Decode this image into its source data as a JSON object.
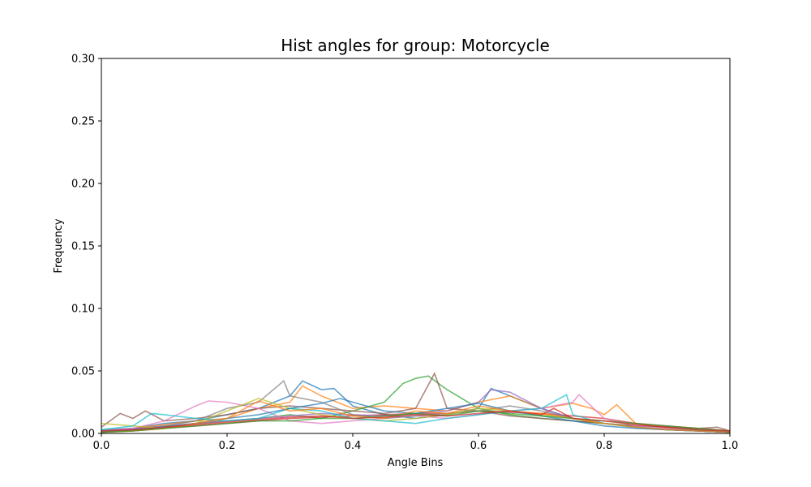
{
  "chart_data": {
    "type": "line",
    "title": "Hist angles for group: Motorcycle",
    "xlabel": "Angle Bins",
    "ylabel": "Frequency",
    "xlim": [
      0.0,
      1.0
    ],
    "ylim": [
      0.0,
      0.3
    ],
    "xticks": [
      "0.0",
      "0.2",
      "0.4",
      "0.6",
      "0.8",
      "1.0"
    ],
    "yticks": [
      "0.00",
      "0.05",
      "0.10",
      "0.15",
      "0.20",
      "0.25",
      "0.30"
    ],
    "grid": false,
    "legend": "none",
    "series": [
      {
        "color": "#1f77b4",
        "x": [
          0.0,
          0.05,
          0.1,
          0.15,
          0.2,
          0.25,
          0.3,
          0.32,
          0.35,
          0.37,
          0.4,
          0.45,
          0.5,
          0.55,
          0.6,
          0.62,
          0.65,
          0.7,
          0.75,
          0.8,
          0.85,
          0.9,
          0.95,
          1.0
        ],
        "y": [
          0.003,
          0.004,
          0.008,
          0.01,
          0.015,
          0.02,
          0.03,
          0.042,
          0.035,
          0.036,
          0.022,
          0.015,
          0.012,
          0.015,
          0.02,
          0.036,
          0.03,
          0.02,
          0.012,
          0.008,
          0.005,
          0.003,
          0.002,
          0.001
        ]
      },
      {
        "color": "#ff7f0e",
        "x": [
          0.0,
          0.05,
          0.1,
          0.15,
          0.2,
          0.25,
          0.3,
          0.32,
          0.35,
          0.4,
          0.45,
          0.5,
          0.55,
          0.6,
          0.65,
          0.7,
          0.75,
          0.78,
          0.8,
          0.82,
          0.85,
          0.9,
          0.95,
          1.0
        ],
        "y": [
          0.002,
          0.004,
          0.007,
          0.01,
          0.012,
          0.02,
          0.025,
          0.038,
          0.03,
          0.02,
          0.022,
          0.02,
          0.018,
          0.025,
          0.03,
          0.02,
          0.024,
          0.02,
          0.015,
          0.023,
          0.008,
          0.004,
          0.002,
          0.001
        ]
      },
      {
        "color": "#2ca02c",
        "x": [
          0.0,
          0.05,
          0.1,
          0.15,
          0.2,
          0.25,
          0.3,
          0.35,
          0.4,
          0.45,
          0.48,
          0.5,
          0.52,
          0.55,
          0.6,
          0.65,
          0.7,
          0.75,
          0.8,
          0.85,
          0.9,
          0.95,
          1.0
        ],
        "y": [
          0.001,
          0.003,
          0.005,
          0.008,
          0.01,
          0.012,
          0.015,
          0.012,
          0.018,
          0.025,
          0.04,
          0.044,
          0.046,
          0.035,
          0.02,
          0.015,
          0.012,
          0.01,
          0.008,
          0.006,
          0.005,
          0.003,
          0.001
        ]
      },
      {
        "color": "#d62728",
        "x": [
          0.0,
          0.05,
          0.1,
          0.15,
          0.2,
          0.25,
          0.3,
          0.35,
          0.4,
          0.45,
          0.5,
          0.55,
          0.6,
          0.65,
          0.7,
          0.75,
          0.8,
          0.85,
          0.9,
          0.95,
          1.0
        ],
        "y": [
          0.001,
          0.002,
          0.004,
          0.006,
          0.008,
          0.01,
          0.012,
          0.013,
          0.014,
          0.015,
          0.016,
          0.016,
          0.018,
          0.017,
          0.016,
          0.014,
          0.012,
          0.008,
          0.006,
          0.004,
          0.002
        ]
      },
      {
        "color": "#9467bd",
        "x": [
          0.0,
          0.05,
          0.1,
          0.15,
          0.2,
          0.25,
          0.3,
          0.35,
          0.4,
          0.45,
          0.5,
          0.55,
          0.6,
          0.62,
          0.65,
          0.7,
          0.75,
          0.8,
          0.85,
          0.9,
          0.95,
          1.0
        ],
        "y": [
          0.002,
          0.004,
          0.006,
          0.008,
          0.01,
          0.012,
          0.014,
          0.016,
          0.015,
          0.014,
          0.016,
          0.018,
          0.025,
          0.035,
          0.033,
          0.02,
          0.012,
          0.008,
          0.005,
          0.003,
          0.002,
          0.001
        ]
      },
      {
        "color": "#8c564b",
        "x": [
          0.0,
          0.03,
          0.05,
          0.07,
          0.1,
          0.15,
          0.2,
          0.25,
          0.3,
          0.35,
          0.4,
          0.45,
          0.5,
          0.53,
          0.55,
          0.6,
          0.65,
          0.7,
          0.75,
          0.8,
          0.85,
          0.9,
          0.95,
          0.98,
          1.0
        ],
        "y": [
          0.005,
          0.016,
          0.012,
          0.018,
          0.01,
          0.012,
          0.015,
          0.02,
          0.022,
          0.02,
          0.018,
          0.016,
          0.02,
          0.048,
          0.02,
          0.018,
          0.014,
          0.012,
          0.01,
          0.008,
          0.006,
          0.005,
          0.004,
          0.005,
          0.002
        ]
      },
      {
        "color": "#e377c2",
        "x": [
          0.0,
          0.05,
          0.1,
          0.15,
          0.17,
          0.2,
          0.25,
          0.3,
          0.35,
          0.4,
          0.45,
          0.5,
          0.55,
          0.6,
          0.65,
          0.7,
          0.75,
          0.76,
          0.8,
          0.85,
          0.9,
          0.95,
          1.0
        ],
        "y": [
          0.002,
          0.004,
          0.01,
          0.022,
          0.026,
          0.025,
          0.02,
          0.01,
          0.008,
          0.01,
          0.012,
          0.014,
          0.012,
          0.015,
          0.018,
          0.02,
          0.025,
          0.031,
          0.012,
          0.006,
          0.004,
          0.002,
          0.001
        ]
      },
      {
        "color": "#7f7f7f",
        "x": [
          0.0,
          0.05,
          0.1,
          0.15,
          0.2,
          0.25,
          0.29,
          0.3,
          0.35,
          0.4,
          0.45,
          0.5,
          0.55,
          0.6,
          0.65,
          0.7,
          0.75,
          0.8,
          0.85,
          0.9,
          0.95,
          1.0
        ],
        "y": [
          0.002,
          0.003,
          0.006,
          0.01,
          0.02,
          0.025,
          0.042,
          0.03,
          0.025,
          0.015,
          0.012,
          0.014,
          0.016,
          0.018,
          0.022,
          0.018,
          0.012,
          0.008,
          0.005,
          0.003,
          0.002,
          0.001
        ]
      },
      {
        "color": "#bcbd22",
        "x": [
          0.0,
          0.05,
          0.1,
          0.15,
          0.2,
          0.25,
          0.3,
          0.35,
          0.4,
          0.45,
          0.5,
          0.55,
          0.6,
          0.65,
          0.7,
          0.75,
          0.8,
          0.85,
          0.9,
          0.95,
          1.0
        ],
        "y": [
          0.008,
          0.006,
          0.004,
          0.008,
          0.018,
          0.028,
          0.02,
          0.015,
          0.012,
          0.01,
          0.012,
          0.015,
          0.02,
          0.018,
          0.015,
          0.012,
          0.008,
          0.005,
          0.003,
          0.002,
          0.001
        ]
      },
      {
        "color": "#17becf",
        "x": [
          0.0,
          0.05,
          0.08,
          0.1,
          0.15,
          0.2,
          0.25,
          0.3,
          0.35,
          0.4,
          0.45,
          0.5,
          0.55,
          0.6,
          0.65,
          0.7,
          0.74,
          0.75,
          0.8,
          0.85,
          0.9,
          0.95,
          1.0
        ],
        "y": [
          0.003,
          0.006,
          0.016,
          0.015,
          0.012,
          0.01,
          0.012,
          0.02,
          0.018,
          0.012,
          0.01,
          0.008,
          0.012,
          0.015,
          0.018,
          0.02,
          0.031,
          0.015,
          0.008,
          0.005,
          0.003,
          0.002,
          0.001
        ]
      },
      {
        "color": "#1f77b4",
        "x": [
          0.0,
          0.05,
          0.1,
          0.15,
          0.2,
          0.25,
          0.3,
          0.35,
          0.38,
          0.4,
          0.45,
          0.5,
          0.55,
          0.6,
          0.65,
          0.7,
          0.75,
          0.8,
          0.85,
          0.9,
          0.95,
          1.0
        ],
        "y": [
          0.001,
          0.003,
          0.005,
          0.008,
          0.012,
          0.015,
          0.02,
          0.024,
          0.028,
          0.025,
          0.018,
          0.016,
          0.02,
          0.024,
          0.018,
          0.014,
          0.01,
          0.006,
          0.004,
          0.003,
          0.002,
          0.001
        ]
      },
      {
        "color": "#ff7f0e",
        "x": [
          0.0,
          0.05,
          0.1,
          0.15,
          0.2,
          0.25,
          0.3,
          0.35,
          0.4,
          0.45,
          0.5,
          0.55,
          0.6,
          0.65,
          0.7,
          0.75,
          0.8,
          0.85,
          0.9,
          0.95,
          1.0
        ],
        "y": [
          0.001,
          0.002,
          0.004,
          0.008,
          0.012,
          0.026,
          0.018,
          0.02,
          0.014,
          0.012,
          0.018,
          0.016,
          0.022,
          0.018,
          0.016,
          0.012,
          0.008,
          0.005,
          0.003,
          0.002,
          0.001
        ]
      },
      {
        "color": "#2ca02c",
        "x": [
          0.0,
          0.05,
          0.1,
          0.15,
          0.2,
          0.25,
          0.3,
          0.35,
          0.4,
          0.45,
          0.5,
          0.55,
          0.6,
          0.65,
          0.7,
          0.75,
          0.8,
          0.85,
          0.9,
          0.95,
          1.0
        ],
        "y": [
          0.001,
          0.002,
          0.004,
          0.006,
          0.008,
          0.01,
          0.01,
          0.012,
          0.012,
          0.014,
          0.016,
          0.014,
          0.018,
          0.016,
          0.014,
          0.012,
          0.01,
          0.008,
          0.006,
          0.004,
          0.002
        ]
      },
      {
        "color": "#d62728",
        "x": [
          0.0,
          0.05,
          0.1,
          0.15,
          0.2,
          0.25,
          0.3,
          0.35,
          0.4,
          0.45,
          0.5,
          0.55,
          0.6,
          0.65,
          0.7,
          0.72,
          0.75,
          0.8,
          0.85,
          0.9,
          0.95,
          1.0
        ],
        "y": [
          0.002,
          0.003,
          0.005,
          0.007,
          0.009,
          0.011,
          0.013,
          0.014,
          0.012,
          0.013,
          0.015,
          0.014,
          0.016,
          0.018,
          0.015,
          0.02,
          0.012,
          0.01,
          0.007,
          0.005,
          0.003,
          0.002
        ]
      }
    ]
  }
}
